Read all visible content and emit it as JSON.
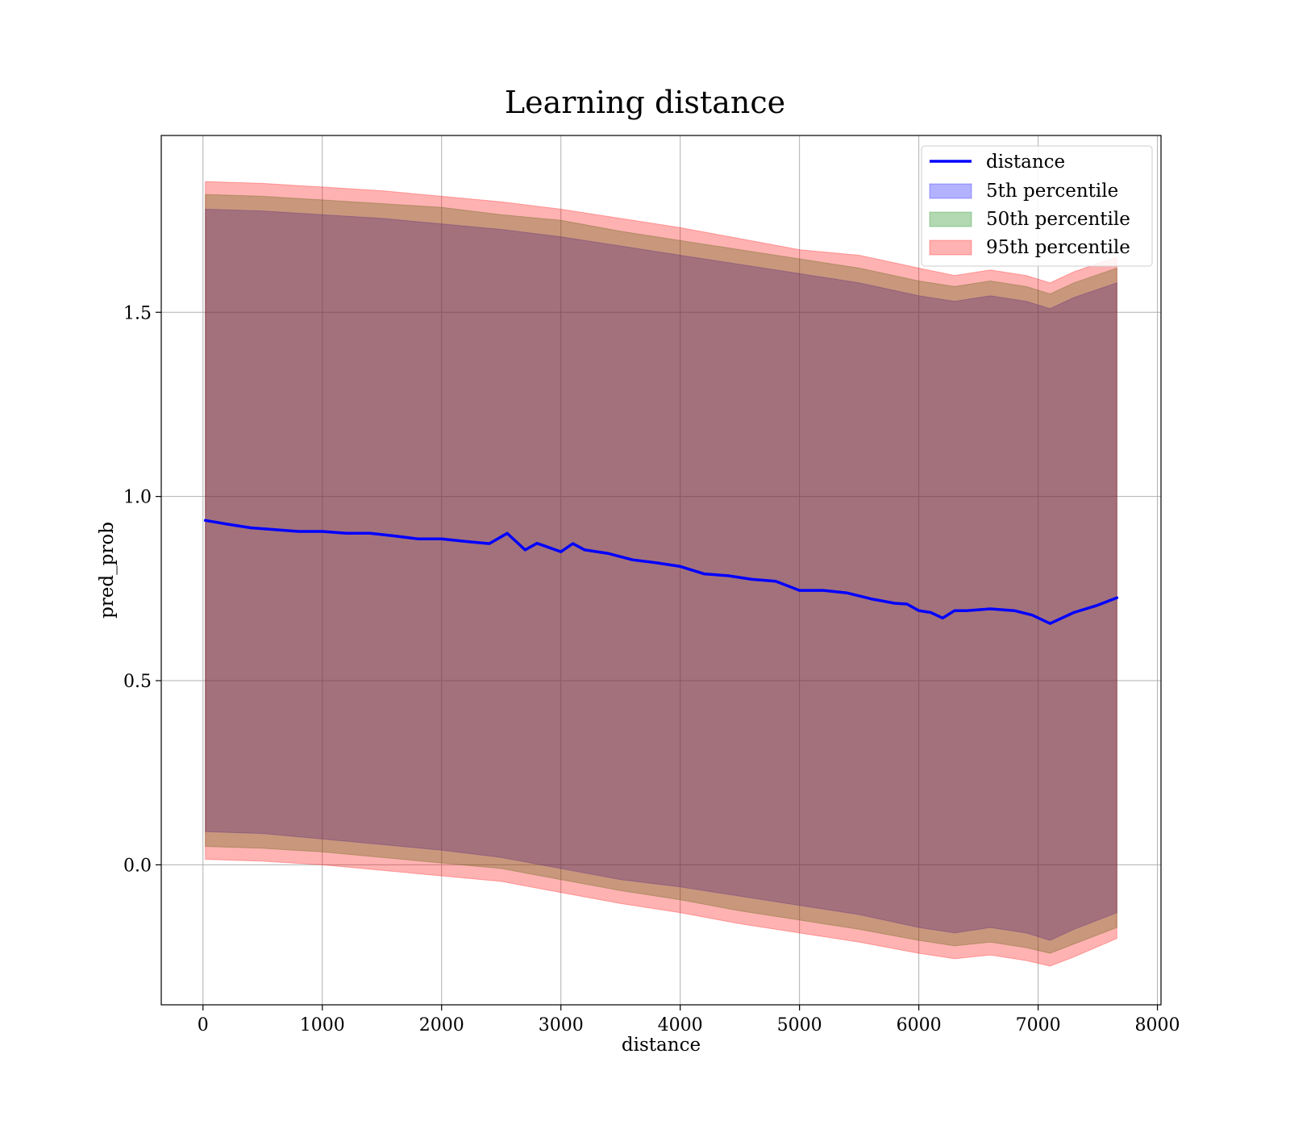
{
  "chart_data": {
    "type": "line",
    "title": "Learning distance",
    "xlabel": "distance",
    "ylabel": "pred_prob",
    "xlim": [
      -350,
      8030
    ],
    "ylim": [
      -0.38,
      1.98
    ],
    "x_ticks": [
      0,
      1000,
      2000,
      3000,
      4000,
      5000,
      6000,
      7000,
      8000
    ],
    "y_ticks": [
      0.0,
      0.5,
      1.0,
      1.5
    ],
    "grid": true,
    "legend_position": "top-right",
    "colors": {
      "line": "#0000ff",
      "band_5th": "#0000ff",
      "band_50th": "#008000",
      "band_95th": "#ff0000",
      "grid": "#b0b0b0"
    },
    "series": [
      {
        "name": "distance",
        "kind": "line",
        "x": [
          20,
          200,
          400,
          600,
          800,
          1000,
          1200,
          1400,
          1600,
          1800,
          2000,
          2200,
          2400,
          2550,
          2700,
          2800,
          3000,
          3100,
          3200,
          3400,
          3600,
          3800,
          4000,
          4200,
          4400,
          4600,
          4800,
          5000,
          5200,
          5400,
          5600,
          5800,
          5900,
          6000,
          6100,
          6200,
          6300,
          6400,
          6600,
          6800,
          6950,
          7100,
          7300,
          7500,
          7660
        ],
        "y": [
          0.935,
          0.925,
          0.915,
          0.91,
          0.905,
          0.905,
          0.9,
          0.9,
          0.893,
          0.885,
          0.885,
          0.878,
          0.872,
          0.9,
          0.855,
          0.873,
          0.85,
          0.872,
          0.855,
          0.845,
          0.828,
          0.82,
          0.81,
          0.79,
          0.785,
          0.775,
          0.77,
          0.745,
          0.745,
          0.738,
          0.722,
          0.71,
          0.708,
          0.69,
          0.685,
          0.67,
          0.69,
          0.69,
          0.695,
          0.69,
          0.678,
          0.655,
          0.685,
          0.705,
          0.725
        ]
      },
      {
        "name": "5th percentile",
        "kind": "band",
        "x": [
          20,
          500,
          1000,
          1500,
          2000,
          2500,
          3000,
          3500,
          4000,
          4500,
          5000,
          5500,
          6000,
          6300,
          6600,
          6900,
          7100,
          7300,
          7660
        ],
        "upper": [
          1.78,
          1.775,
          1.765,
          1.755,
          1.74,
          1.725,
          1.705,
          1.68,
          1.655,
          1.63,
          1.605,
          1.58,
          1.545,
          1.53,
          1.545,
          1.53,
          1.51,
          1.54,
          1.58
        ],
        "lower": [
          0.09,
          0.085,
          0.07,
          0.055,
          0.04,
          0.02,
          -0.01,
          -0.04,
          -0.06,
          -0.085,
          -0.11,
          -0.135,
          -0.17,
          -0.185,
          -0.17,
          -0.185,
          -0.205,
          -0.175,
          -0.13
        ]
      },
      {
        "name": "50th percentile",
        "kind": "band",
        "x": [
          20,
          500,
          1000,
          1500,
          2000,
          2500,
          3000,
          3500,
          4000,
          4500,
          5000,
          5500,
          6000,
          6300,
          6600,
          6900,
          7100,
          7300,
          7660
        ],
        "upper": [
          1.82,
          1.815,
          1.805,
          1.795,
          1.785,
          1.765,
          1.75,
          1.72,
          1.695,
          1.67,
          1.645,
          1.62,
          1.585,
          1.57,
          1.585,
          1.57,
          1.55,
          1.58,
          1.62
        ],
        "lower": [
          0.05,
          0.045,
          0.035,
          0.02,
          0.005,
          -0.01,
          -0.04,
          -0.07,
          -0.095,
          -0.125,
          -0.15,
          -0.175,
          -0.205,
          -0.22,
          -0.21,
          -0.225,
          -0.24,
          -0.215,
          -0.17
        ]
      },
      {
        "name": "95th percentile",
        "kind": "band",
        "x": [
          20,
          500,
          1000,
          1500,
          2000,
          2500,
          3000,
          3500,
          4000,
          4500,
          5000,
          5500,
          6000,
          6300,
          6600,
          6900,
          7100,
          7300,
          7660
        ],
        "upper": [
          1.855,
          1.85,
          1.84,
          1.83,
          1.815,
          1.8,
          1.78,
          1.755,
          1.73,
          1.7,
          1.67,
          1.655,
          1.62,
          1.6,
          1.615,
          1.6,
          1.58,
          1.61,
          1.65
        ],
        "lower": [
          0.015,
          0.01,
          0.0,
          -0.015,
          -0.03,
          -0.045,
          -0.075,
          -0.105,
          -0.13,
          -0.16,
          -0.185,
          -0.21,
          -0.24,
          -0.255,
          -0.245,
          -0.26,
          -0.275,
          -0.25,
          -0.2
        ]
      }
    ]
  }
}
